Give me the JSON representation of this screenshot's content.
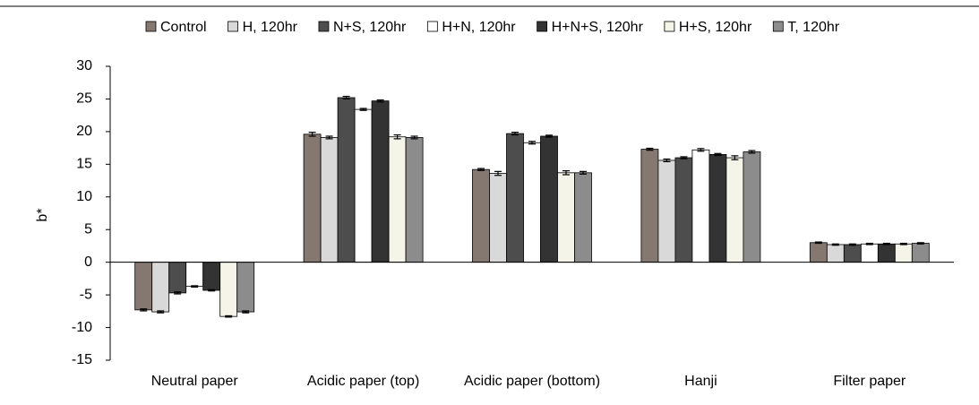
{
  "chart_data": {
    "type": "bar",
    "y_label": "b*",
    "categories": [
      "Neutral paper",
      "Acidic paper (top)",
      "Acidic paper (bottom)",
      "Hanji",
      "Filter paper"
    ],
    "series": [
      {
        "name": "Control",
        "color": "#857870",
        "values": [
          -7.3,
          19.6,
          14.2,
          17.3,
          3.0
        ],
        "errors": [
          0.15,
          0.3,
          0.15,
          0.15,
          0.1
        ]
      },
      {
        "name": "H, 120hr",
        "color": "#d9d9d9",
        "values": [
          -7.6,
          19.1,
          13.6,
          15.6,
          2.7
        ],
        "errors": [
          0.15,
          0.2,
          0.3,
          0.2,
          0.1
        ]
      },
      {
        "name": "N+S, 120hr",
        "color": "#4d4d4d",
        "values": [
          -4.7,
          25.2,
          19.7,
          16.0,
          2.7
        ],
        "errors": [
          0.15,
          0.2,
          0.2,
          0.15,
          0.1
        ]
      },
      {
        "name": "H+N, 120hr",
        "color": "#ffffff",
        "values": [
          -3.7,
          23.4,
          18.3,
          17.2,
          2.8
        ],
        "errors": [
          0.1,
          0.15,
          0.2,
          0.2,
          0.1
        ]
      },
      {
        "name": "H+N+S, 120hr",
        "color": "#333333",
        "values": [
          -4.3,
          24.7,
          19.3,
          16.5,
          2.8
        ],
        "errors": [
          0.1,
          0.15,
          0.15,
          0.15,
          0.1
        ]
      },
      {
        "name": "H+S, 120hr",
        "color": "#f4f4e8",
        "values": [
          -8.3,
          19.2,
          13.7,
          16.0,
          2.8
        ],
        "errors": [
          0.1,
          0.3,
          0.3,
          0.3,
          0.1
        ]
      },
      {
        "name": "T, 120hr",
        "color": "#8c8c8c",
        "values": [
          -7.6,
          19.1,
          13.7,
          16.9,
          2.9
        ],
        "errors": [
          0.15,
          0.2,
          0.2,
          0.2,
          0.1
        ]
      }
    ],
    "ylim": [
      -15,
      30
    ],
    "yticks": [
      -15,
      -10,
      -5,
      0,
      5,
      10,
      15,
      20,
      25,
      30
    ],
    "grid": false
  }
}
